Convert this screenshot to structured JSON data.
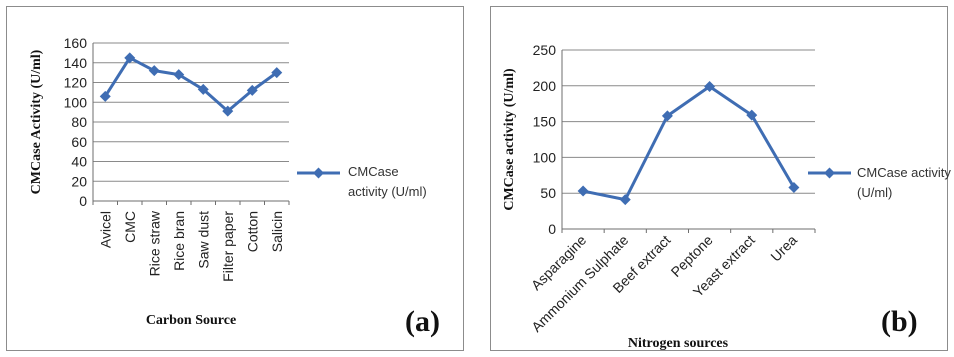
{
  "chart_data": [
    {
      "type": "line",
      "title": "",
      "panel_label": "(a)",
      "xlabel": "Carbon Source",
      "ylabel": "CMCase Activity (U/ml)",
      "categories": [
        "Avicel",
        "CMC",
        "Rice straw",
        "Rice bran",
        "Saw dust",
        "Filter paper",
        "Cotton",
        "Salicin"
      ],
      "series": [
        {
          "name": "CMCase activity (U/ml)",
          "legend_lines": [
            "CMCase",
            "activity (U/ml)"
          ],
          "values": [
            106,
            145,
            132,
            128,
            113,
            91,
            112,
            130
          ],
          "color": "#3f6db3"
        }
      ],
      "ylim": [
        0,
        160
      ],
      "yticks": [
        0,
        20,
        40,
        60,
        80,
        100,
        120,
        140,
        160
      ],
      "grid": true,
      "legend_position": "right"
    },
    {
      "type": "line",
      "title": "",
      "panel_label": "(b)",
      "xlabel": "Nitrogen sources",
      "ylabel": "CMCase activity (U/ml)",
      "categories": [
        "Asparagine",
        "Ammonium Sulphate",
        "Beef extract",
        "Peptone",
        "Yeast extract",
        "Urea"
      ],
      "series": [
        {
          "name": "CMCase activity (U/ml)",
          "legend_lines": [
            "CMCase activity",
            "(U/ml)"
          ],
          "values": [
            53,
            41,
            158,
            199,
            159,
            58
          ],
          "color": "#3f6db3"
        }
      ],
      "ylim": [
        0,
        250
      ],
      "yticks": [
        0,
        50,
        100,
        150,
        200,
        250
      ],
      "grid": true,
      "legend_position": "right"
    }
  ]
}
